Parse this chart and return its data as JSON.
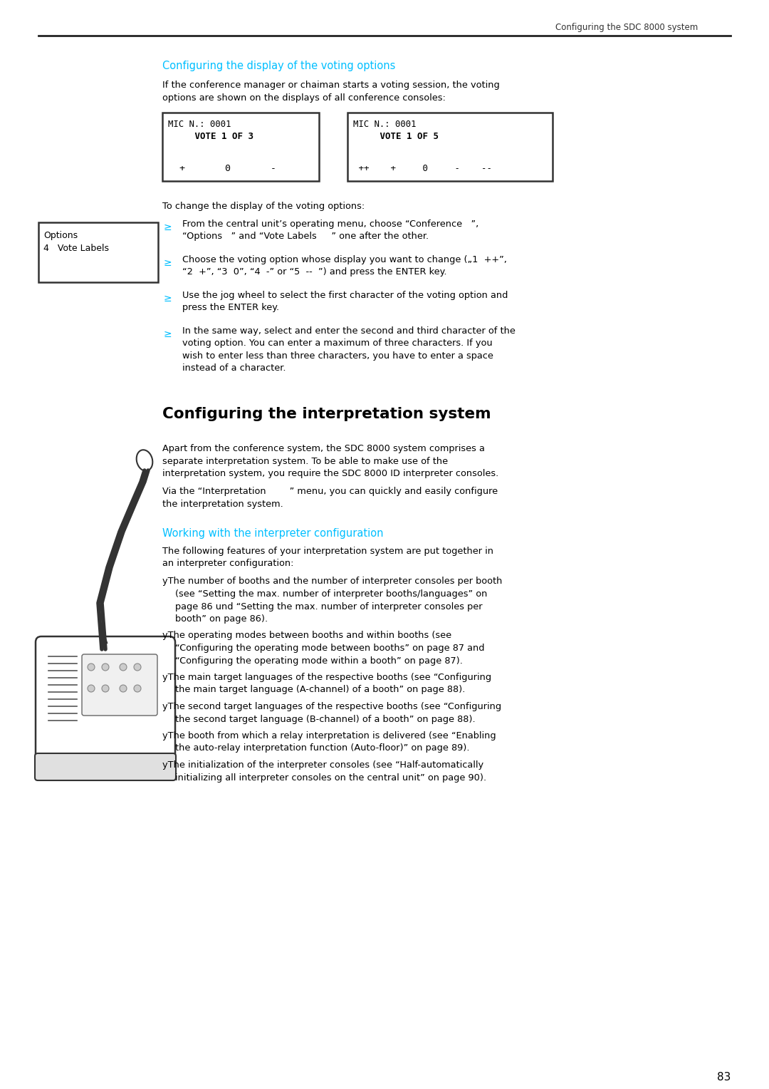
{
  "page_header_right": "Configuring the SDC 8000 system",
  "section_title": "Configuring the display of the voting options",
  "section_title_color": "#00BFFF",
  "intro_line1": "If the conference manager or chaiman starts a voting session, the voting",
  "intro_line2": "options are shown on the displays of all conference consoles:",
  "box1_l1": "MIC N.: 0001",
  "box1_l2": "     VOTE 1 OF 3",
  "box1_l3": "  +       0       -",
  "box2_l1": "MIC N.: 0001",
  "box2_l2": "     VOTE 1 OF 5",
  "box2_l3": " ++    +     0     -    --",
  "change_text": "To change the display of the voting options:",
  "sidebar_l1": "Options",
  "sidebar_l2": "4   Vote Labels",
  "bullet_color": "#00BFFF",
  "bullet_sym": "≥",
  "bullets": [
    [
      "From the central unit’s operating menu, choose “Conference   ”,",
      "“Options   ” and “Vote Labels     ” one after the other."
    ],
    [
      "Choose the voting option whose display you want to change („1  ++”,",
      "“2  +”, “3  0”, “4  -” or “5  --  ”) and press the ENTER key."
    ],
    [
      "Use the jog wheel to select the first character of the voting option and",
      "press the ENTER key."
    ],
    [
      "In the same way, select and enter the second and third character of the",
      "voting option. You can enter a maximum of three characters. If you",
      "wish to enter less than three characters, you have to enter a space",
      "instead of a character."
    ]
  ],
  "sec2_title": "Configuring the interpretation system",
  "sec2_intro": [
    "Apart from the conference system, the SDC 8000 system comprises a",
    "separate interpretation system. To be able to make use of the",
    "interpretation system, you require the SDC 8000 ID interpreter consoles."
  ],
  "sec2_menu": [
    "Via the “Interpretation        ” menu, you can quickly and easily configure",
    "the interpretation system."
  ],
  "sub_title": "Working with the interpreter configuration",
  "sub_title_color": "#00BFFF",
  "sub_intro": [
    "The following features of your interpretation system are put together in",
    "an interpreter configuration:"
  ],
  "sub_bullets": [
    [
      "The number of booths and the number of interpreter consoles per booth",
      "(see “Setting the max. number of interpreter booths/languages” on",
      "page 86 und “Setting the max. number of interpreter consoles per",
      "booth” on page 86)."
    ],
    [
      "The operating modes between booths and within booths (see",
      "“Configuring the operating mode between booths” on page 87 and",
      "“Configuring the operating mode within a booth” on page 87)."
    ],
    [
      "The main target languages of the respective booths (see “Configuring",
      "the main target language (A-channel) of a booth” on page 88)."
    ],
    [
      "The second target languages of the respective booths (see “Configuring",
      "the second target language (B-channel) of a booth” on page 88)."
    ],
    [
      "The booth from which a relay interpretation is delivered (see “Enabling",
      "the auto-relay interpretation function (Auto-floor)” on page 89)."
    ],
    [
      "The initialization of the interpreter consoles (see “Half-automatically",
      "initializing all interpreter consoles on the central unit” on page 90)."
    ]
  ],
  "page_num": "83"
}
